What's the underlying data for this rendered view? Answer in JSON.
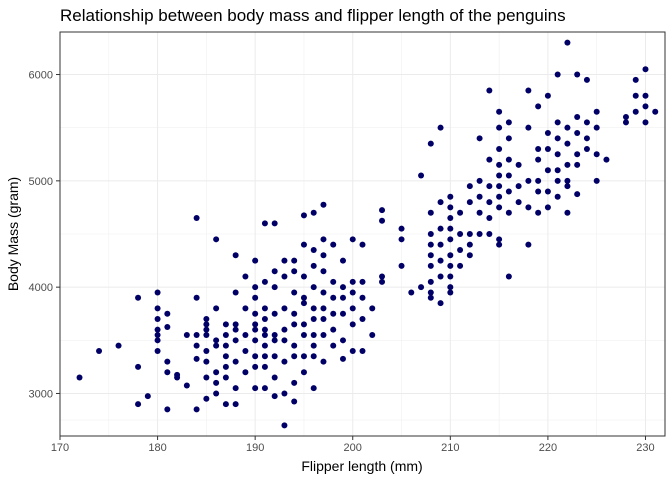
{
  "chart_data": {
    "type": "scatter",
    "title": "Relationship between body mass and flipper length of the penguins",
    "xlabel": "Flipper length (mm)",
    "ylabel": "Body Mass (gram)",
    "xlim": [
      170,
      232
    ],
    "ylim": [
      2600,
      6400
    ],
    "xticks": [
      170,
      180,
      190,
      200,
      210,
      220,
      230
    ],
    "yticks": [
      3000,
      4000,
      5000,
      6000
    ],
    "grid": true,
    "point_color": "#000066",
    "points": [
      [
        172,
        3150
      ],
      [
        174,
        3400
      ],
      [
        176,
        3450
      ],
      [
        178,
        3900
      ],
      [
        178,
        3250
      ],
      [
        178,
        2900
      ],
      [
        179,
        2975
      ],
      [
        180,
        3950
      ],
      [
        180,
        3800
      ],
      [
        180,
        3700
      ],
      [
        180,
        3600
      ],
      [
        180,
        3550
      ],
      [
        180,
        3500
      ],
      [
        180,
        3400
      ],
      [
        181,
        3750
      ],
      [
        181,
        3625
      ],
      [
        181,
        3300
      ],
      [
        181,
        3200
      ],
      [
        181,
        2850
      ],
      [
        182,
        3175
      ],
      [
        182,
        3150
      ],
      [
        183,
        3550
      ],
      [
        183,
        3075
      ],
      [
        184,
        4650
      ],
      [
        184,
        3900
      ],
      [
        184,
        3550
      ],
      [
        184,
        3450
      ],
      [
        184,
        3325
      ],
      [
        184,
        2850
      ],
      [
        185,
        3700
      ],
      [
        185,
        3650
      ],
      [
        185,
        3600
      ],
      [
        185,
        3550
      ],
      [
        185,
        3400
      ],
      [
        185,
        3300
      ],
      [
        185,
        3150
      ],
      [
        185,
        2950
      ],
      [
        186,
        4450
      ],
      [
        186,
        3800
      ],
      [
        186,
        3500
      ],
      [
        186,
        3450
      ],
      [
        186,
        3200
      ],
      [
        186,
        3100
      ],
      [
        186,
        3000
      ],
      [
        187,
        3650
      ],
      [
        187,
        3550
      ],
      [
        187,
        3450
      ],
      [
        187,
        3350
      ],
      [
        187,
        3250
      ],
      [
        187,
        3150
      ],
      [
        187,
        2900
      ],
      [
        188,
        4300
      ],
      [
        188,
        3950
      ],
      [
        188,
        3650
      ],
      [
        188,
        3600
      ],
      [
        188,
        3500
      ],
      [
        188,
        3300
      ],
      [
        188,
        3050
      ],
      [
        188,
        2900
      ],
      [
        189,
        4100
      ],
      [
        189,
        3800
      ],
      [
        189,
        3550
      ],
      [
        189,
        3400
      ],
      [
        189,
        3200
      ],
      [
        190,
        4250
      ],
      [
        190,
        4000
      ],
      [
        190,
        3900
      ],
      [
        190,
        3750
      ],
      [
        190,
        3650
      ],
      [
        190,
        3600
      ],
      [
        190,
        3500
      ],
      [
        190,
        3350
      ],
      [
        190,
        3250
      ],
      [
        190,
        3050
      ],
      [
        191,
        4600
      ],
      [
        191,
        4050
      ],
      [
        191,
        3800
      ],
      [
        191,
        3700
      ],
      [
        191,
        3600
      ],
      [
        191,
        3550
      ],
      [
        191,
        3450
      ],
      [
        191,
        3350
      ],
      [
        191,
        3250
      ],
      [
        191,
        3050
      ],
      [
        192,
        4600
      ],
      [
        192,
        4150
      ],
      [
        192,
        4000
      ],
      [
        192,
        3750
      ],
      [
        192,
        3550
      ],
      [
        192,
        3500
      ],
      [
        192,
        3350
      ],
      [
        192,
        3150
      ],
      [
        192,
        2975
      ],
      [
        193,
        4250
      ],
      [
        193,
        4100
      ],
      [
        193,
        3800
      ],
      [
        193,
        3600
      ],
      [
        193,
        3500
      ],
      [
        193,
        3300
      ],
      [
        193,
        3000
      ],
      [
        193,
        2700
      ],
      [
        194,
        4250
      ],
      [
        194,
        4150
      ],
      [
        194,
        3950
      ],
      [
        194,
        3750
      ],
      [
        194,
        3650
      ],
      [
        194,
        3450
      ],
      [
        194,
        3350
      ],
      [
        194,
        3100
      ],
      [
        194,
        2925
      ],
      [
        195,
        4675
      ],
      [
        195,
        4400
      ],
      [
        195,
        4100
      ],
      [
        195,
        3900
      ],
      [
        195,
        3850
      ],
      [
        195,
        3650
      ],
      [
        195,
        3550
      ],
      [
        195,
        3350
      ],
      [
        195,
        3200
      ],
      [
        196,
        4700
      ],
      [
        196,
        4350
      ],
      [
        196,
        4200
      ],
      [
        196,
        4000
      ],
      [
        196,
        3800
      ],
      [
        196,
        3700
      ],
      [
        196,
        3550
      ],
      [
        196,
        3450
      ],
      [
        196,
        3350
      ],
      [
        196,
        3050
      ],
      [
        197,
        4775
      ],
      [
        197,
        4450
      ],
      [
        197,
        4300
      ],
      [
        197,
        4150
      ],
      [
        197,
        3950
      ],
      [
        197,
        3800
      ],
      [
        197,
        3700
      ],
      [
        197,
        3550
      ],
      [
        197,
        3300
      ],
      [
        198,
        4400
      ],
      [
        198,
        4050
      ],
      [
        198,
        3900
      ],
      [
        198,
        3750
      ],
      [
        198,
        3600
      ],
      [
        198,
        3450
      ],
      [
        199,
        4250
      ],
      [
        199,
        4000
      ],
      [
        199,
        3900
      ],
      [
        199,
        3750
      ],
      [
        199,
        3500
      ],
      [
        199,
        3325
      ],
      [
        200,
        4450
      ],
      [
        200,
        4050
      ],
      [
        200,
        3950
      ],
      [
        200,
        3800
      ],
      [
        200,
        3650
      ],
      [
        200,
        3400
      ],
      [
        201,
        4400
      ],
      [
        201,
        4050
      ],
      [
        201,
        3900
      ],
      [
        201,
        3700
      ],
      [
        201,
        3400
      ],
      [
        202,
        3800
      ],
      [
        202,
        3550
      ],
      [
        203,
        4725
      ],
      [
        203,
        4625
      ],
      [
        203,
        4050
      ],
      [
        203,
        4100
      ],
      [
        205,
        4550
      ],
      [
        205,
        4450
      ],
      [
        205,
        4200
      ],
      [
        206,
        3950
      ],
      [
        207,
        4000
      ],
      [
        207,
        5050
      ],
      [
        208,
        5350
      ],
      [
        208,
        4700
      ],
      [
        208,
        4500
      ],
      [
        208,
        4400
      ],
      [
        208,
        4300
      ],
      [
        208,
        4200
      ],
      [
        208,
        4050
      ],
      [
        208,
        3950
      ],
      [
        208,
        3900
      ],
      [
        209,
        5500
      ],
      [
        209,
        4800
      ],
      [
        209,
        4550
      ],
      [
        209,
        4400
      ],
      [
        209,
        4250
      ],
      [
        209,
        4100
      ],
      [
        209,
        3850
      ],
      [
        210,
        4850
      ],
      [
        210,
        4750
      ],
      [
        210,
        4650
      ],
      [
        210,
        4550
      ],
      [
        210,
        4450
      ],
      [
        210,
        4300
      ],
      [
        210,
        4200
      ],
      [
        210,
        4100
      ],
      [
        210,
        4000
      ],
      [
        210,
        3950
      ],
      [
        211,
        4700
      ],
      [
        211,
        4500
      ],
      [
        211,
        4350
      ],
      [
        211,
        4200
      ],
      [
        212,
        4950
      ],
      [
        212,
        4800
      ],
      [
        212,
        4500
      ],
      [
        212,
        4400
      ],
      [
        212,
        4300
      ],
      [
        213,
        5400
      ],
      [
        213,
        5000
      ],
      [
        213,
        4850
      ],
      [
        213,
        4700
      ],
      [
        213,
        4500
      ],
      [
        214,
        5850
      ],
      [
        214,
        5200
      ],
      [
        214,
        4950
      ],
      [
        214,
        4800
      ],
      [
        214,
        4650
      ],
      [
        214,
        4500
      ],
      [
        215,
        5650
      ],
      [
        215,
        5500
      ],
      [
        215,
        5300
      ],
      [
        215,
        5150
      ],
      [
        215,
        5050
      ],
      [
        215,
        4950
      ],
      [
        215,
        4850
      ],
      [
        215,
        4750
      ],
      [
        215,
        4450
      ],
      [
        215,
        4400
      ],
      [
        216,
        5550
      ],
      [
        216,
        5400
      ],
      [
        216,
        5200
      ],
      [
        216,
        5050
      ],
      [
        216,
        4900
      ],
      [
        216,
        4700
      ],
      [
        216,
        4100
      ],
      [
        217,
        5150
      ],
      [
        217,
        4950
      ],
      [
        217,
        4800
      ],
      [
        218,
        5850
      ],
      [
        218,
        5500
      ],
      [
        218,
        5000
      ],
      [
        218,
        4750
      ],
      [
        218,
        4400
      ],
      [
        219,
        5700
      ],
      [
        219,
        5300
      ],
      [
        219,
        5200
      ],
      [
        219,
        5000
      ],
      [
        219,
        4900
      ],
      [
        219,
        4700
      ],
      [
        220,
        5800
      ],
      [
        220,
        5450
      ],
      [
        220,
        5300
      ],
      [
        220,
        5100
      ],
      [
        220,
        4900
      ],
      [
        220,
        4750
      ],
      [
        221,
        6000
      ],
      [
        221,
        5550
      ],
      [
        221,
        5400
      ],
      [
        221,
        5250
      ],
      [
        221,
        5100
      ],
      [
        221,
        5000
      ],
      [
        221,
        4850
      ],
      [
        222,
        6300
      ],
      [
        222,
        5500
      ],
      [
        222,
        5350
      ],
      [
        222,
        5150
      ],
      [
        222,
        5000
      ],
      [
        222,
        4950
      ],
      [
        222,
        4700
      ],
      [
        223,
        6000
      ],
      [
        223,
        5600
      ],
      [
        223,
        5450
      ],
      [
        223,
        5250
      ],
      [
        223,
        5150
      ],
      [
        223,
        4875
      ],
      [
        224,
        5950
      ],
      [
        224,
        5550
      ],
      [
        224,
        5400
      ],
      [
        224,
        5300
      ],
      [
        225,
        5650
      ],
      [
        225,
        5500
      ],
      [
        225,
        5250
      ],
      [
        225,
        5000
      ],
      [
        226,
        5200
      ],
      [
        228,
        5600
      ],
      [
        228,
        5550
      ],
      [
        229,
        5950
      ],
      [
        229,
        5800
      ],
      [
        229,
        5650
      ],
      [
        230,
        6050
      ],
      [
        230,
        5800
      ],
      [
        230,
        5700
      ],
      [
        230,
        5550
      ],
      [
        231,
        5650
      ]
    ]
  }
}
